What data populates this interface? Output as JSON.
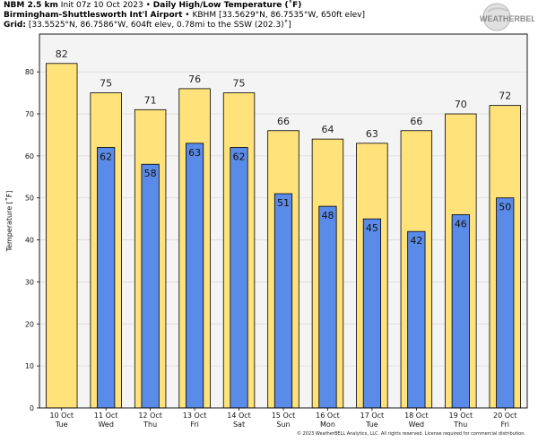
{
  "header": {
    "line1": {
      "model": "NBM 2.5 km",
      "init": "Init 07z 10 Oct 2023",
      "sep": "•",
      "product": "Daily High/Low Temperature (˚F)"
    },
    "line2": {
      "station": "Birmingham-Shuttlesworth Int'l Airport",
      "sep": "•",
      "detail": "KBHM [33.5629°N, 86.7535°W, 650ft elev]"
    },
    "line3": {
      "label": "Grid:",
      "detail": "[33.5525°N, 86.7586°W, 604ft elev, 0.78mi to the SSW (202.3)˚]"
    }
  },
  "logo": {
    "text": "WEATHERBELL",
    "prefix": "W",
    "suffix": "ELL",
    "mid": "EATHER",
    "b": "B"
  },
  "copyright": "© 2023 WeatherBELL Analytics, LLC. All rights reserved. License required for commercial distribution.",
  "colors": {
    "high": "#ffe27a",
    "low": "#5b8be8",
    "plot_bg": "#f4f4f4",
    "outline": "#000000"
  },
  "chart_data": {
    "type": "bar",
    "ylabel": "Temperature [˚F]",
    "ylim": [
      0,
      89
    ],
    "yticks": [
      0,
      10,
      20,
      30,
      40,
      50,
      60,
      70,
      80
    ],
    "grid": true,
    "categories": [
      {
        "date": "10 Oct",
        "day": "Tue"
      },
      {
        "date": "11 Oct",
        "day": "Wed"
      },
      {
        "date": "12 Oct",
        "day": "Thu"
      },
      {
        "date": "13 Oct",
        "day": "Fri"
      },
      {
        "date": "14 Oct",
        "day": "Sat"
      },
      {
        "date": "15 Oct",
        "day": "Sun"
      },
      {
        "date": "16 Oct",
        "day": "Mon"
      },
      {
        "date": "17 Oct",
        "day": "Tue"
      },
      {
        "date": "18 Oct",
        "day": "Wed"
      },
      {
        "date": "19 Oct",
        "day": "Thu"
      },
      {
        "date": "20 Oct",
        "day": "Fri"
      }
    ],
    "series": [
      {
        "key": "high",
        "values": [
          82,
          75,
          71,
          76,
          75,
          66,
          64,
          63,
          66,
          70,
          72
        ]
      },
      {
        "key": "low",
        "values": [
          null,
          62,
          58,
          63,
          62,
          51,
          48,
          45,
          42,
          46,
          50
        ]
      }
    ]
  }
}
